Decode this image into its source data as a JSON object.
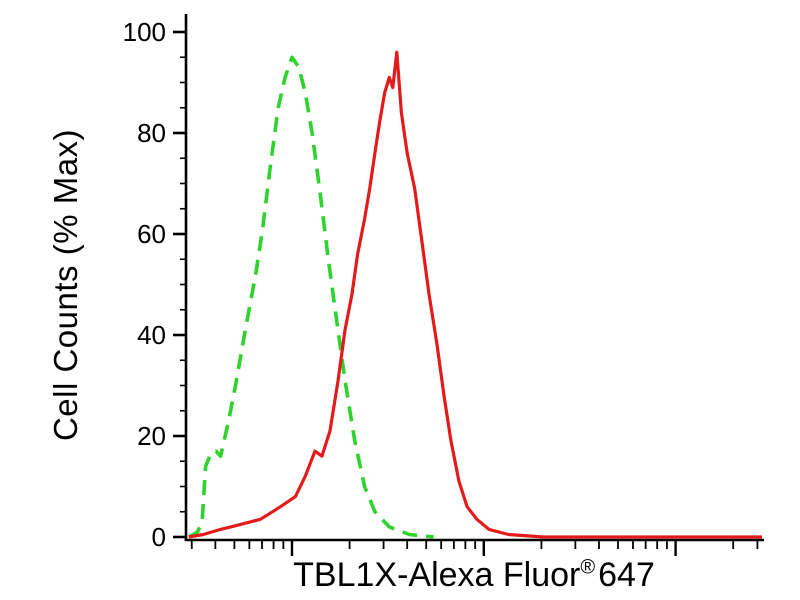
{
  "figure": {
    "background": "#ffffff",
    "ylabel": "Cell Counts (% Max)",
    "xlabel_main": "TBL1X-Alexa Fluor",
    "xlabel_sup": "®",
    "xlabel_suffix": "647"
  },
  "chart_data": {
    "type": "line",
    "title": "",
    "xlabel": "TBL1X-Alexa Fluor® 647",
    "ylabel": "Cell Counts (% Max)",
    "grid": false,
    "legend_position": "none",
    "x_axis": {
      "scale": "log-like fluorescence intensity (flow cytometry), no numeric tick labels shown",
      "range_normalized": [
        0,
        1
      ],
      "tick_labels_shown": false,
      "ticks": {
        "major": [
          0.184,
          0.517,
          0.85
        ],
        "minor": [
          0.01,
          0.051,
          0.084,
          0.11,
          0.132,
          0.152,
          0.169,
          0.284,
          0.343,
          0.384,
          0.417,
          0.443,
          0.465,
          0.485,
          0.502,
          0.617,
          0.676,
          0.717,
          0.75,
          0.776,
          0.798,
          0.818,
          0.835,
          0.95,
          0.992
        ]
      }
    },
    "y_axis": {
      "range": [
        0,
        100
      ],
      "major_ticks": [
        0,
        20,
        40,
        60,
        80,
        100
      ],
      "minor_ticks": [
        5,
        10,
        15,
        25,
        30,
        35,
        45,
        50,
        55,
        65,
        70,
        75,
        85,
        90,
        95
      ],
      "tick_labels": [
        "0",
        "20",
        "40",
        "60",
        "80",
        "100"
      ]
    },
    "axis_color": "#000000",
    "series": [
      {
        "name": "green-dashed-curve",
        "style": "dashed",
        "color": "#2ed32e",
        "stroke_width": 3.6,
        "peak": {
          "x": 0.184,
          "y": 95
        },
        "points": [
          [
            0.005,
            0
          ],
          [
            0.02,
            1
          ],
          [
            0.028,
            3
          ],
          [
            0.034,
            14
          ],
          [
            0.043,
            16.5
          ],
          [
            0.052,
            17
          ],
          [
            0.06,
            16
          ],
          [
            0.074,
            23
          ],
          [
            0.086,
            30
          ],
          [
            0.103,
            41
          ],
          [
            0.121,
            52
          ],
          [
            0.133,
            61
          ],
          [
            0.147,
            74
          ],
          [
            0.16,
            85
          ],
          [
            0.172,
            91
          ],
          [
            0.184,
            95
          ],
          [
            0.196,
            93
          ],
          [
            0.207,
            88
          ],
          [
            0.219,
            80
          ],
          [
            0.233,
            68
          ],
          [
            0.247,
            55
          ],
          [
            0.259,
            45
          ],
          [
            0.276,
            31
          ],
          [
            0.293,
            19
          ],
          [
            0.31,
            10
          ],
          [
            0.328,
            5
          ],
          [
            0.353,
            2
          ],
          [
            0.388,
            0.5
          ],
          [
            0.43,
            0
          ]
        ]
      },
      {
        "name": "red-solid-curve",
        "style": "solid",
        "color": "#e31b1b",
        "stroke_width": 3.2,
        "peak": {
          "x": 0.366,
          "y": 96
        },
        "points": [
          [
            0.005,
            0
          ],
          [
            0.03,
            0.5
          ],
          [
            0.06,
            1.5
          ],
          [
            0.095,
            2.5
          ],
          [
            0.129,
            3.5
          ],
          [
            0.15,
            5
          ],
          [
            0.164,
            6
          ],
          [
            0.19,
            8
          ],
          [
            0.207,
            12
          ],
          [
            0.224,
            17
          ],
          [
            0.236,
            16
          ],
          [
            0.25,
            21
          ],
          [
            0.264,
            31
          ],
          [
            0.276,
            41
          ],
          [
            0.288,
            48
          ],
          [
            0.298,
            56
          ],
          [
            0.31,
            63
          ],
          [
            0.319,
            69
          ],
          [
            0.328,
            76
          ],
          [
            0.336,
            82
          ],
          [
            0.345,
            88
          ],
          [
            0.353,
            91
          ],
          [
            0.359,
            89
          ],
          [
            0.366,
            96
          ],
          [
            0.374,
            84
          ],
          [
            0.384,
            76
          ],
          [
            0.397,
            69
          ],
          [
            0.409,
            59
          ],
          [
            0.422,
            48
          ],
          [
            0.436,
            38
          ],
          [
            0.448,
            28
          ],
          [
            0.46,
            19
          ],
          [
            0.474,
            11
          ],
          [
            0.488,
            6
          ],
          [
            0.505,
            3.5
          ],
          [
            0.526,
            1.5
          ],
          [
            0.56,
            0.5
          ],
          [
            0.62,
            0
          ],
          [
            1.0,
            0
          ]
        ]
      }
    ]
  }
}
